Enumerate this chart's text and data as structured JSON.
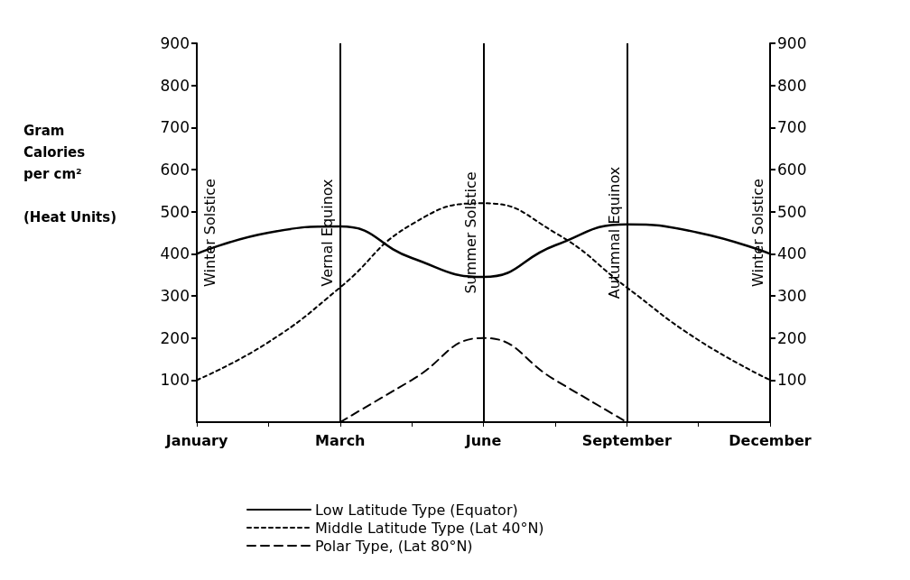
{
  "chart_data": {
    "type": "line",
    "ylabel": "Gram\nCalories\nper cm²\n\n(Heat Units)",
    "categories": [
      "January",
      null,
      "March",
      null,
      "June",
      null,
      "September",
      null,
      "December"
    ],
    "ylim": [
      0,
      900
    ],
    "yticks": [
      100,
      200,
      300,
      400,
      500,
      600,
      700,
      800,
      900
    ],
    "y2lim": [
      0,
      900
    ],
    "y2ticks": [
      100,
      200,
      300,
      400,
      500,
      600,
      700,
      800,
      900
    ],
    "grid": false,
    "legend": "bottom",
    "marker": "none",
    "annotations": [
      "Winter Solstice",
      "Winter Solstice"
    ],
    "ref_lines": [
      {
        "axis": "x",
        "value": "March",
        "label": "Vernal Equinox"
      },
      {
        "axis": "x",
        "value": "June",
        "label": "Summer Solstice"
      },
      {
        "axis": "x",
        "value": "September",
        "label": "Autumnal Equinox"
      }
    ],
    "series": [
      {
        "name": "Low Latitude Type (Equator)",
        "color": "#000000",
        "line_style": "solid",
        "values": [
          400,
          450,
          465,
          390,
          345,
          420,
          470,
          450,
          400
        ]
      },
      {
        "name": "Middle Latitude Type (Lat 40°N)",
        "color": "#000000",
        "line_style": "dotted",
        "values": [
          100,
          190,
          320,
          470,
          520,
          450,
          320,
          195,
          100
        ]
      },
      {
        "name": "Polar Type, (Lat 80°N)",
        "color": "#000000",
        "line_style": "dashed",
        "values": [
          null,
          null,
          0,
          100,
          200,
          100,
          0,
          null,
          null
        ]
      }
    ]
  }
}
